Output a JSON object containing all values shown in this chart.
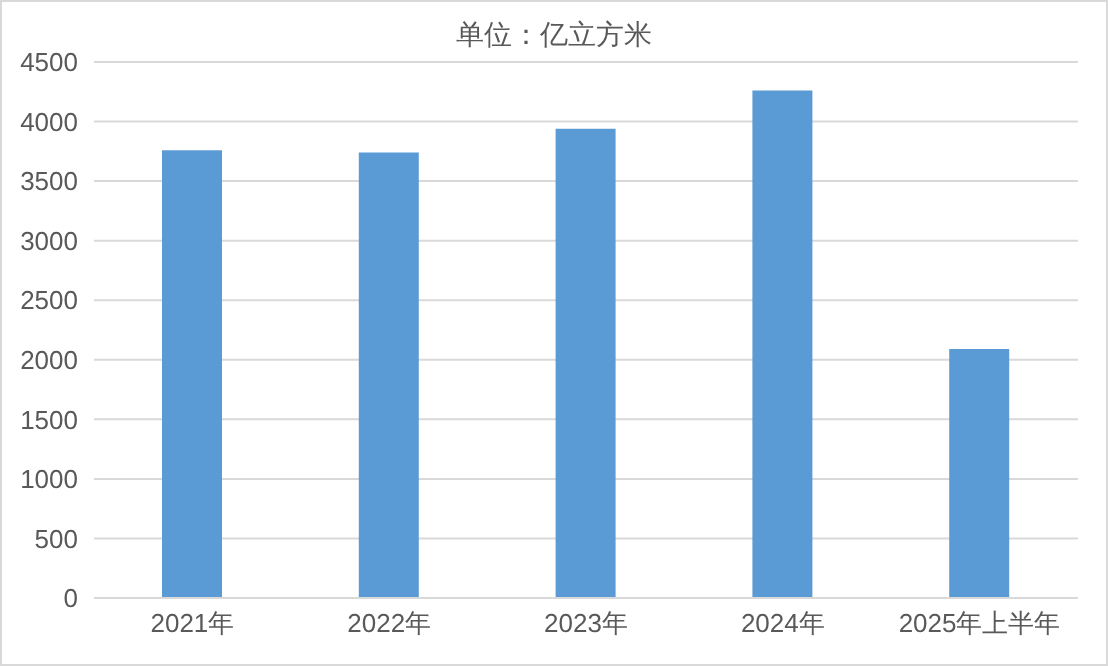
{
  "chart_data": {
    "type": "bar",
    "title": "单位：亿立方米",
    "categories": [
      "2021年",
      "2022年",
      "2023年",
      "2024年",
      "2025年上半年"
    ],
    "values": [
      3760,
      3740,
      3940,
      4260,
      2090
    ],
    "color": "#5b9bd5",
    "ylim": [
      0,
      4500
    ],
    "yticks": [
      0,
      500,
      1000,
      1500,
      2000,
      2500,
      3000,
      3500,
      4000,
      4500
    ],
    "grid": "y"
  }
}
